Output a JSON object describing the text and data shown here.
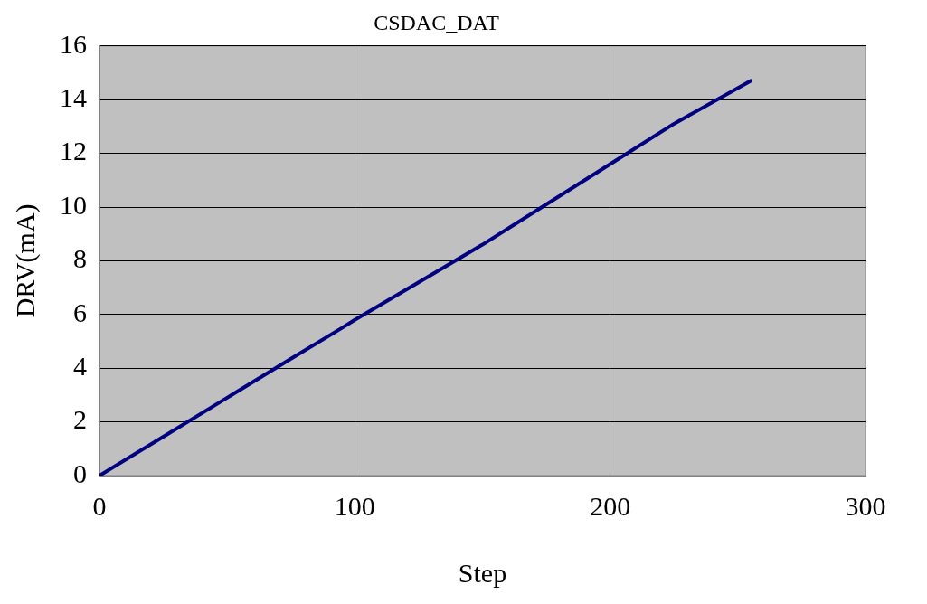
{
  "chart_data": {
    "type": "line",
    "title": "CSDAC_DAT",
    "xlabel": "Step",
    "ylabel": "DRV(mA)",
    "x": [
      0,
      25,
      50,
      75,
      95,
      100,
      125,
      150,
      175,
      200,
      225,
      255
    ],
    "series": [
      {
        "color": "#000080",
        "values": [
          0,
          1.45,
          2.9,
          4.35,
          5.5,
          5.8,
          7.2,
          8.6,
          10.1,
          11.6,
          13.1,
          14.7
        ]
      }
    ],
    "xlim": [
      0,
      300
    ],
    "xticks": [
      0,
      100,
      200,
      300
    ],
    "ylim": [
      0,
      16
    ],
    "yticks": [
      0,
      2,
      4,
      6,
      8,
      10,
      12,
      14,
      16
    ],
    "grid": true,
    "legend": false,
    "marker": "none",
    "line_style": "solid"
  }
}
